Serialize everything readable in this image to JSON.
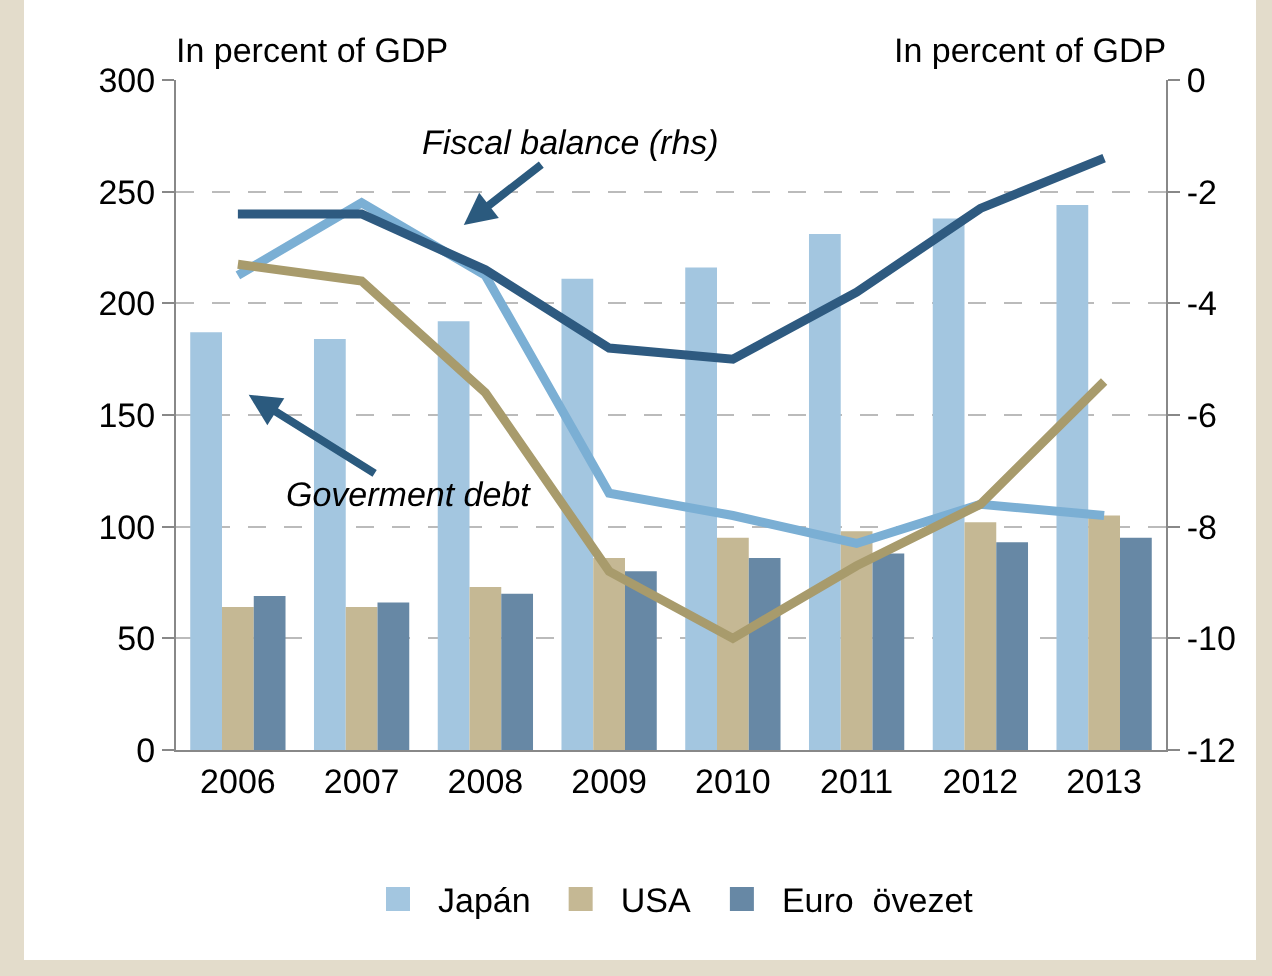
{
  "chart_data": {
    "type": "bar",
    "ylabel": "In percent of GDP",
    "y2label": "In percent of GDP",
    "categories": [
      "2006",
      "2007",
      "2008",
      "2009",
      "2010",
      "2011",
      "2012",
      "2013"
    ],
    "series": [
      {
        "name": "Japán",
        "color": "#a3c6e0",
        "values": [
          187,
          184,
          192,
          211,
          216,
          231,
          238,
          244
        ]
      },
      {
        "name": "USA",
        "color": "#c5b894",
        "values": [
          64,
          64,
          73,
          86,
          95,
          98,
          102,
          105
        ]
      },
      {
        "name": "Euro  övezet",
        "color": "#6788a5",
        "values": [
          69,
          66,
          70,
          80,
          86,
          88,
          93,
          95
        ]
      },
      {
        "type": "line",
        "axis": "y2",
        "color": "#7bafd4",
        "values": [
          -3.5,
          -2.2,
          -3.5,
          -7.4,
          -7.8,
          -8.3,
          -7.6,
          -7.8
        ]
      },
      {
        "type": "line",
        "axis": "y2",
        "color": "#a89b6c",
        "values": [
          -3.3,
          -3.6,
          -5.6,
          -8.8,
          -10.0,
          -8.7,
          -7.6,
          -5.4
        ]
      },
      {
        "type": "line",
        "axis": "y2",
        "color": "#2e5a80",
        "values": [
          -2.4,
          -2.4,
          -3.4,
          -4.8,
          -5.0,
          -3.8,
          -2.3,
          -1.4
        ]
      }
    ],
    "ylim": [
      0,
      300
    ],
    "yticks": [
      0,
      50,
      100,
      150,
      200,
      250,
      300
    ],
    "y2lim": [
      -12,
      0
    ],
    "y2ticks": [
      -12,
      -10,
      -8,
      -6,
      -4,
      -2,
      0
    ],
    "annotations": [
      "Fiscal balance (rhs)",
      "Goverment debt"
    ],
    "grid": "y",
    "legend": "bottom",
    "line_style": "solid",
    "marker": "none"
  }
}
